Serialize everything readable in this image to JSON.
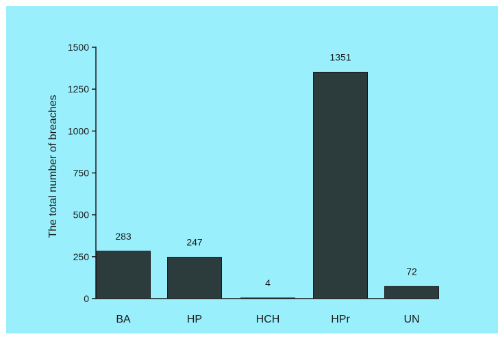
{
  "colors": {
    "panel_background": "#9aeffc",
    "bar_fill": "#2c3b3b",
    "axis": "#1a1a1a",
    "text": "#1a1a1a"
  },
  "chart_data": {
    "type": "bar",
    "categories": [
      "BA",
      "HP",
      "HCH",
      "HPr",
      "UN"
    ],
    "values": [
      283,
      247,
      4,
      1351,
      72
    ],
    "data_labels": [
      "283",
      "247",
      "4",
      "1351",
      "72"
    ],
    "title": "",
    "xlabel": "",
    "ylabel": "The total number of breaches",
    "ylim": [
      0,
      1500
    ],
    "yticks": [
      0,
      250,
      500,
      750,
      1000,
      1250,
      1500
    ],
    "ytick_labels": [
      "0",
      "250",
      "500",
      "750",
      "1000",
      "1250",
      "1500"
    ],
    "grid": false,
    "legend": "none"
  }
}
